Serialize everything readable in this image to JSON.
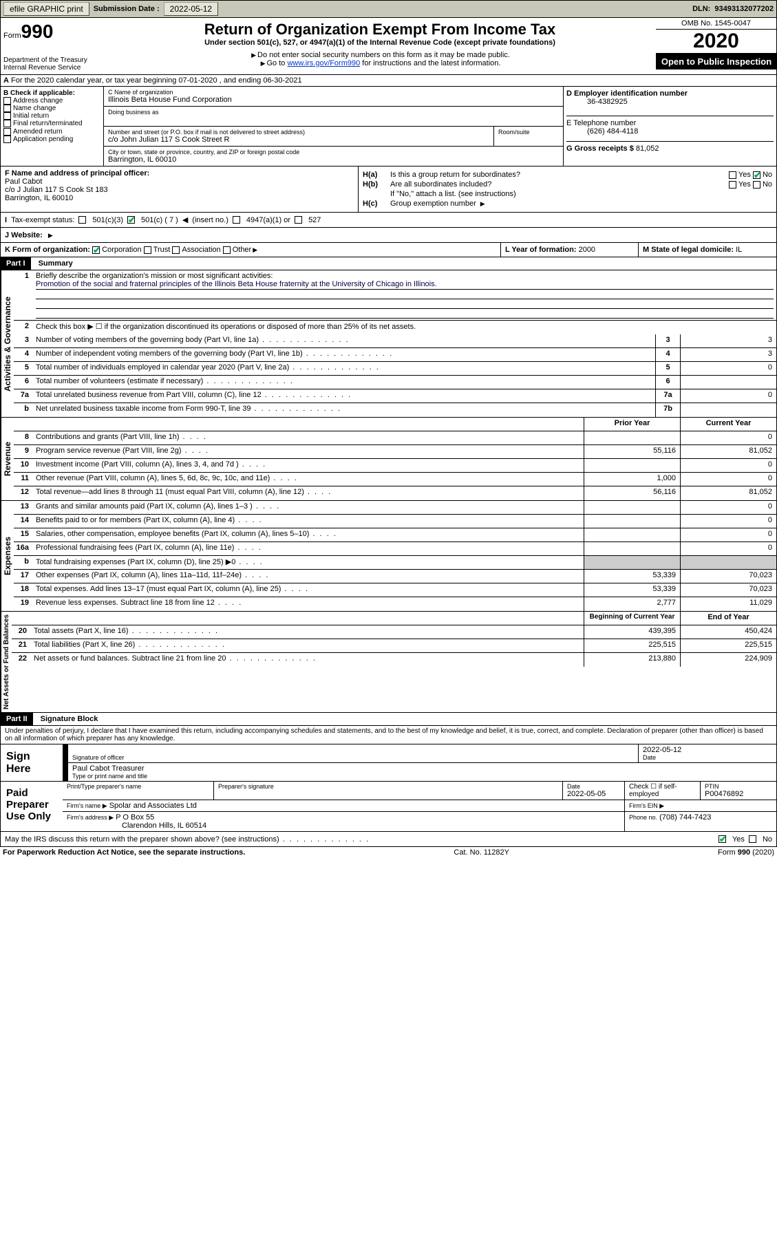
{
  "topbar": {
    "efile": "efile GRAPHIC print",
    "submission_label": "Submission Date :",
    "submission_date": "2022-05-12",
    "dln_label": "DLN:",
    "dln": "93493132077202"
  },
  "header": {
    "form_word": "Form",
    "form_number": "990",
    "dept": "Department of the Treasury\nInternal Revenue Service",
    "title": "Return of Organization Exempt From Income Tax",
    "subtitle": "Under section 501(c), 527, or 4947(a)(1) of the Internal Revenue Code (except private foundations)",
    "note1": "Do not enter social security numbers on this form as it may be made public.",
    "note2_pre": "Go to ",
    "note2_link": "www.irs.gov/Form990",
    "note2_post": " for instructions and the latest information.",
    "omb": "OMB No. 1545-0047",
    "year": "2020",
    "inspection": "Open to Public Inspection"
  },
  "row_a": {
    "text": "For the 2020 calendar year, or tax year beginning 07-01-2020   , and ending 06-30-2021"
  },
  "box_b": {
    "label": "B Check if applicable:",
    "items": [
      "Address change",
      "Name change",
      "Initial return",
      "Final return/terminated",
      "Amended return",
      "Application pending"
    ]
  },
  "box_c": {
    "name_label": "C Name of organization",
    "name": "Illinois Beta House Fund Corporation",
    "dba_label": "Doing business as",
    "addr_label": "Number and street (or P.O. box if mail is not delivered to street address)",
    "suite_label": "Room/suite",
    "addr": "c/o John Julian 117 S Cook Street R",
    "city_label": "City or town, state or province, country, and ZIP or foreign postal code",
    "city": "Barrington, IL  60010"
  },
  "box_d": {
    "label": "D Employer identification number",
    "value": "36-4382925"
  },
  "box_e": {
    "label": "E Telephone number",
    "value": "(626) 484-4118"
  },
  "box_g": {
    "label": "G Gross receipts $",
    "value": "81,052"
  },
  "box_f": {
    "label": "F  Name and address of principal officer:",
    "name": "Paul Cabot",
    "addr1": "c/o J Julian 117 S Cook St 183",
    "addr2": "Barrington, IL  60010"
  },
  "box_h": {
    "a_label": "Is this a group return for subordinates?",
    "b_label": "Are all subordinates included?",
    "b_note": "If \"No,\" attach a list. (see instructions)",
    "c_label": "Group exemption number"
  },
  "row_i": {
    "label": "Tax-exempt status:",
    "opts": [
      "501(c)(3)",
      "501(c) ( 7 )",
      "(insert no.)",
      "4947(a)(1) or",
      "527"
    ]
  },
  "row_j": {
    "label": "J   Website:"
  },
  "row_k": {
    "k_label": "K Form of organization:",
    "k_opts": [
      "Corporation",
      "Trust",
      "Association",
      "Other"
    ],
    "l_label": "L Year of formation:",
    "l_value": "2000",
    "m_label": "M State of legal domicile:",
    "m_value": "IL"
  },
  "part1": {
    "header": "Part I",
    "title": "Summary",
    "side1": "Activities & Governance",
    "side2": "Revenue",
    "side3": "Expenses",
    "side4": "Net Assets or Fund Balances",
    "line1_label": "Briefly describe the organization's mission or most significant activities:",
    "line1_text": "Promotion of the social and fraternal principles of the Illinois Beta House fraternity at the University of Chicago in Illinois.",
    "line2_text": "Check this box ▶ ☐  if the organization discontinued its operations or disposed of more than 25% of its net assets.",
    "lines_ag": [
      {
        "n": "3",
        "t": "Number of voting members of the governing body (Part VI, line 1a)",
        "box": "3",
        "v": "3"
      },
      {
        "n": "4",
        "t": "Number of independent voting members of the governing body (Part VI, line 1b)",
        "box": "4",
        "v": "3"
      },
      {
        "n": "5",
        "t": "Total number of individuals employed in calendar year 2020 (Part V, line 2a)",
        "box": "5",
        "v": "0"
      },
      {
        "n": "6",
        "t": "Total number of volunteers (estimate if necessary)",
        "box": "6",
        "v": ""
      },
      {
        "n": "7a",
        "t": "Total unrelated business revenue from Part VIII, column (C), line 12",
        "box": "7a",
        "v": "0"
      },
      {
        "n": "b",
        "t": "Net unrelated business taxable income from Form 990-T, line 39",
        "box": "7b",
        "v": ""
      }
    ],
    "col_prior": "Prior Year",
    "col_current": "Current Year",
    "lines_rev": [
      {
        "n": "8",
        "t": "Contributions and grants (Part VIII, line 1h)",
        "p": "",
        "c": "0"
      },
      {
        "n": "9",
        "t": "Program service revenue (Part VIII, line 2g)",
        "p": "55,116",
        "c": "81,052"
      },
      {
        "n": "10",
        "t": "Investment income (Part VIII, column (A), lines 3, 4, and 7d )",
        "p": "",
        "c": "0"
      },
      {
        "n": "11",
        "t": "Other revenue (Part VIII, column (A), lines 5, 6d, 8c, 9c, 10c, and 11e)",
        "p": "1,000",
        "c": "0"
      },
      {
        "n": "12",
        "t": "Total revenue—add lines 8 through 11 (must equal Part VIII, column (A), line 12)",
        "p": "56,116",
        "c": "81,052"
      }
    ],
    "lines_exp": [
      {
        "n": "13",
        "t": "Grants and similar amounts paid (Part IX, column (A), lines 1–3 )",
        "p": "",
        "c": "0"
      },
      {
        "n": "14",
        "t": "Benefits paid to or for members (Part IX, column (A), line 4)",
        "p": "",
        "c": "0"
      },
      {
        "n": "15",
        "t": "Salaries, other compensation, employee benefits (Part IX, column (A), lines 5–10)",
        "p": "",
        "c": "0"
      },
      {
        "n": "16a",
        "t": "Professional fundraising fees (Part IX, column (A), line 11e)",
        "p": "",
        "c": "0"
      },
      {
        "n": "b",
        "t": "Total fundraising expenses (Part IX, column (D), line 25) ▶0",
        "p": "grey",
        "c": "grey"
      },
      {
        "n": "17",
        "t": "Other expenses (Part IX, column (A), lines 11a–11d, 11f–24e)",
        "p": "53,339",
        "c": "70,023"
      },
      {
        "n": "18",
        "t": "Total expenses. Add lines 13–17 (must equal Part IX, column (A), line 25)",
        "p": "53,339",
        "c": "70,023"
      },
      {
        "n": "19",
        "t": "Revenue less expenses. Subtract line 18 from line 12",
        "p": "2,777",
        "c": "11,029"
      }
    ],
    "col_begin": "Beginning of Current Year",
    "col_end": "End of Year",
    "lines_net": [
      {
        "n": "20",
        "t": "Total assets (Part X, line 16)",
        "p": "439,395",
        "c": "450,424"
      },
      {
        "n": "21",
        "t": "Total liabilities (Part X, line 26)",
        "p": "225,515",
        "c": "225,515"
      },
      {
        "n": "22",
        "t": "Net assets or fund balances. Subtract line 21 from line 20",
        "p": "213,880",
        "c": "224,909"
      }
    ]
  },
  "part2": {
    "header": "Part II",
    "title": "Signature Block",
    "perjury": "Under penalties of perjury, I declare that I have examined this return, including accompanying schedules and statements, and to the best of my knowledge and belief, it is true, correct, and complete. Declaration of preparer (other than officer) is based on all information of which preparer has any knowledge.",
    "sign_here": "Sign Here",
    "sig_officer": "Signature of officer",
    "sig_date": "2022-05-12",
    "date_label": "Date",
    "officer_name": "Paul Cabot  Treasurer",
    "type_name": "Type or print name and title",
    "paid": "Paid Preparer Use Only",
    "prep_name_label": "Print/Type preparer's name",
    "prep_sig_label": "Preparer's signature",
    "prep_date_label": "Date",
    "prep_date": "2022-05-05",
    "check_if": "Check ☐ if self-employed",
    "ptin_label": "PTIN",
    "ptin": "P00476892",
    "firm_name_label": "Firm's name   ▶",
    "firm_name": "Spolar and Associates Ltd",
    "firm_ein_label": "Firm's EIN ▶",
    "firm_addr_label": "Firm's address ▶",
    "firm_addr1": "P O Box 55",
    "firm_addr2": "Clarendon Hills, IL  60514",
    "phone_label": "Phone no.",
    "phone": "(708) 744-7423",
    "discuss": "May the IRS discuss this return with the preparer shown above? (see instructions)",
    "yes": "Yes",
    "no": "No"
  },
  "footer": {
    "left": "For Paperwork Reduction Act Notice, see the separate instructions.",
    "mid": "Cat. No. 11282Y",
    "right": "Form 990 (2020)"
  }
}
